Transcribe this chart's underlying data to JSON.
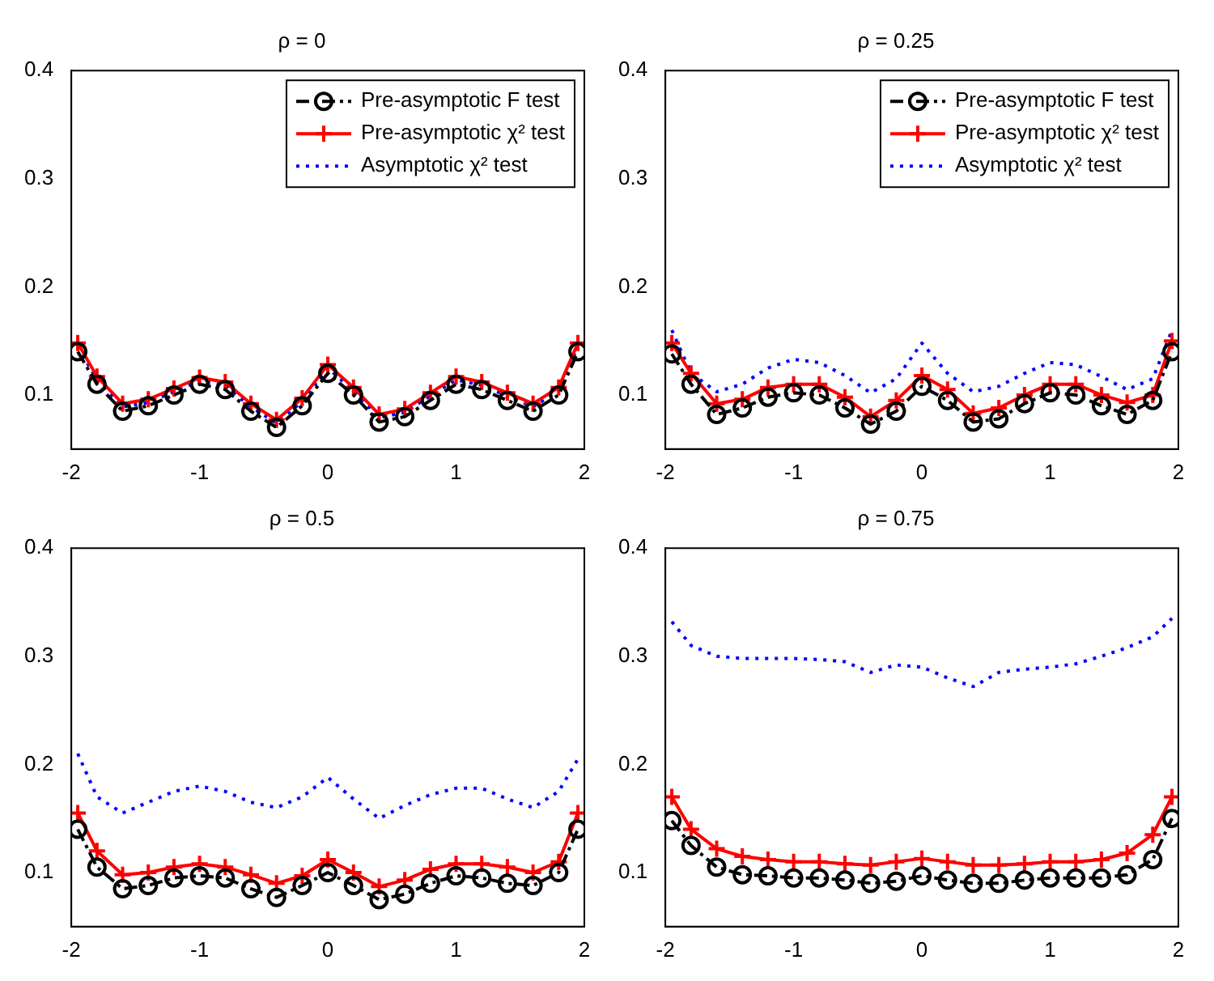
{
  "chart_data": [
    {
      "type": "line",
      "title": "ρ = 0",
      "x": [
        -1.95,
        -1.8,
        -1.6,
        -1.4,
        -1.2,
        -1.0,
        -0.8,
        -0.6,
        -0.4,
        -0.2,
        0,
        0.2,
        0.4,
        0.6,
        0.8,
        1.0,
        1.2,
        1.4,
        1.6,
        1.8,
        1.95
      ],
      "xlim": [
        -2,
        2
      ],
      "xticks": [
        -2,
        -1,
        0,
        1,
        2
      ],
      "ylim": [
        0.05,
        0.4
      ],
      "yticks": [
        0.1,
        0.2,
        0.3,
        0.4
      ],
      "legend": "top right",
      "grid": false,
      "series": [
        {
          "name": "Pre-asymptotic F test",
          "color": "#000000",
          "marker": "circle",
          "line_style": "dashed",
          "values": [
            0.14,
            0.11,
            0.085,
            0.09,
            0.1,
            0.11,
            0.105,
            0.085,
            0.07,
            0.09,
            0.12,
            0.1,
            0.075,
            0.08,
            0.095,
            0.11,
            0.105,
            0.095,
            0.085,
            0.1,
            0.14
          ]
        },
        {
          "name": "Pre-asymptotic χ² test",
          "color": "#ff0000",
          "marker": "cross",
          "line_style": "solid",
          "values": [
            0.148,
            0.117,
            0.092,
            0.096,
            0.106,
            0.116,
            0.112,
            0.092,
            0.077,
            0.097,
            0.128,
            0.107,
            0.082,
            0.087,
            0.102,
            0.117,
            0.112,
            0.102,
            0.092,
            0.107,
            0.148
          ]
        },
        {
          "name": "Asymptotic χ² test",
          "color": "#0000ff",
          "marker": "none",
          "line_style": "dotted",
          "values": [
            0.145,
            0.114,
            0.089,
            0.093,
            0.103,
            0.113,
            0.109,
            0.089,
            0.074,
            0.094,
            0.125,
            0.104,
            0.079,
            0.084,
            0.099,
            0.114,
            0.109,
            0.099,
            0.089,
            0.104,
            0.145
          ]
        }
      ]
    },
    {
      "type": "line",
      "title": "ρ = 0.25",
      "x": [
        -1.95,
        -1.8,
        -1.6,
        -1.4,
        -1.2,
        -1.0,
        -0.8,
        -0.6,
        -0.4,
        -0.2,
        0,
        0.2,
        0.4,
        0.6,
        0.8,
        1.0,
        1.2,
        1.4,
        1.6,
        1.8,
        1.95
      ],
      "xlim": [
        -2,
        2
      ],
      "xticks": [
        -2,
        -1,
        0,
        1,
        2
      ],
      "ylim": [
        0.05,
        0.4
      ],
      "yticks": [
        0.1,
        0.2,
        0.3,
        0.4
      ],
      "legend": "top right",
      "grid": false,
      "series": [
        {
          "name": "Pre-asymptotic F test",
          "color": "#000000",
          "marker": "circle",
          "line_style": "dashed",
          "values": [
            0.138,
            0.11,
            0.082,
            0.088,
            0.098,
            0.102,
            0.1,
            0.088,
            0.073,
            0.085,
            0.108,
            0.095,
            0.075,
            0.078,
            0.092,
            0.102,
            0.1,
            0.09,
            0.082,
            0.095,
            0.14
          ]
        },
        {
          "name": "Pre-asymptotic χ² test",
          "color": "#ff0000",
          "marker": "cross",
          "line_style": "solid",
          "values": [
            0.148,
            0.12,
            0.092,
            0.096,
            0.107,
            0.11,
            0.11,
            0.098,
            0.08,
            0.095,
            0.118,
            0.105,
            0.083,
            0.088,
            0.1,
            0.11,
            0.11,
            0.1,
            0.093,
            0.1,
            0.15
          ]
        },
        {
          "name": "Asymptotic χ² test",
          "color": "#0000ff",
          "marker": "none",
          "line_style": "dotted",
          "values": [
            0.16,
            0.12,
            0.103,
            0.11,
            0.125,
            0.133,
            0.13,
            0.118,
            0.102,
            0.115,
            0.148,
            0.12,
            0.103,
            0.108,
            0.12,
            0.13,
            0.128,
            0.117,
            0.105,
            0.115,
            0.16
          ]
        }
      ]
    },
    {
      "type": "line",
      "title": "ρ = 0.5",
      "x": [
        -1.95,
        -1.8,
        -1.6,
        -1.4,
        -1.2,
        -1.0,
        -0.8,
        -0.6,
        -0.4,
        -0.2,
        0,
        0.2,
        0.4,
        0.6,
        0.8,
        1.0,
        1.2,
        1.4,
        1.6,
        1.8,
        1.95
      ],
      "xlim": [
        -2,
        2
      ],
      "xticks": [
        -2,
        -1,
        0,
        1,
        2
      ],
      "ylim": [
        0.05,
        0.4
      ],
      "yticks": [
        0.1,
        0.2,
        0.3,
        0.4
      ],
      "grid": false,
      "series": [
        {
          "color": "#000000",
          "marker": "circle",
          "line_style": "dashed",
          "values": [
            0.14,
            0.105,
            0.085,
            0.088,
            0.095,
            0.097,
            0.095,
            0.085,
            0.077,
            0.088,
            0.1,
            0.088,
            0.075,
            0.08,
            0.09,
            0.097,
            0.095,
            0.09,
            0.088,
            0.1,
            0.14
          ]
        },
        {
          "color": "#ff0000",
          "marker": "cross",
          "line_style": "solid",
          "values": [
            0.155,
            0.12,
            0.098,
            0.1,
            0.105,
            0.108,
            0.105,
            0.098,
            0.09,
            0.097,
            0.112,
            0.1,
            0.087,
            0.093,
            0.103,
            0.108,
            0.108,
            0.105,
            0.1,
            0.11,
            0.155
          ]
        },
        {
          "color": "#0000ff",
          "marker": "none",
          "line_style": "dotted",
          "values": [
            0.21,
            0.17,
            0.155,
            0.165,
            0.175,
            0.18,
            0.175,
            0.165,
            0.16,
            0.17,
            0.188,
            0.168,
            0.15,
            0.162,
            0.172,
            0.178,
            0.178,
            0.168,
            0.16,
            0.175,
            0.205
          ]
        }
      ]
    },
    {
      "type": "line",
      "title": "ρ = 0.75",
      "x": [
        -1.95,
        -1.8,
        -1.6,
        -1.4,
        -1.2,
        -1.0,
        -0.8,
        -0.6,
        -0.4,
        -0.2,
        0,
        0.2,
        0.4,
        0.6,
        0.8,
        1.0,
        1.2,
        1.4,
        1.6,
        1.8,
        1.95
      ],
      "xlim": [
        -2,
        2
      ],
      "xticks": [
        -2,
        -1,
        0,
        1,
        2
      ],
      "ylim": [
        0.05,
        0.4
      ],
      "yticks": [
        0.1,
        0.2,
        0.3,
        0.4
      ],
      "grid": false,
      "series": [
        {
          "color": "#000000",
          "marker": "circle",
          "line_style": "dashed",
          "values": [
            0.148,
            0.125,
            0.105,
            0.098,
            0.097,
            0.095,
            0.095,
            0.093,
            0.09,
            0.092,
            0.097,
            0.093,
            0.09,
            0.09,
            0.093,
            0.095,
            0.095,
            0.095,
            0.098,
            0.112,
            0.15
          ]
        },
        {
          "color": "#ff0000",
          "marker": "cross",
          "line_style": "solid",
          "values": [
            0.17,
            0.14,
            0.122,
            0.115,
            0.112,
            0.11,
            0.11,
            0.108,
            0.107,
            0.11,
            0.113,
            0.11,
            0.107,
            0.107,
            0.108,
            0.11,
            0.11,
            0.112,
            0.118,
            0.135,
            0.17
          ]
        },
        {
          "color": "#0000ff",
          "marker": "none",
          "line_style": "dotted",
          "values": [
            0.332,
            0.31,
            0.3,
            0.298,
            0.298,
            0.298,
            0.297,
            0.295,
            0.285,
            0.292,
            0.29,
            0.28,
            0.272,
            0.285,
            0.288,
            0.29,
            0.293,
            0.3,
            0.308,
            0.318,
            0.335
          ]
        }
      ]
    }
  ]
}
